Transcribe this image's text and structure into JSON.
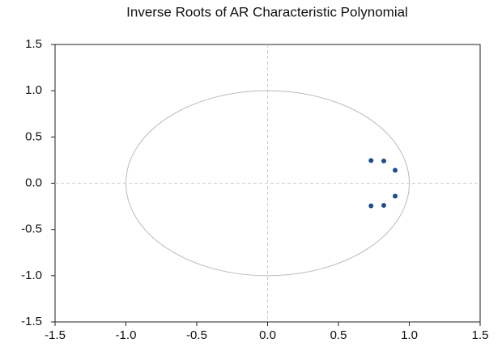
{
  "chart_data": {
    "type": "scatter",
    "title": "Inverse Roots of AR Characteristic Polynomial",
    "x": [
      0.73,
      0.82,
      0.9,
      0.9,
      0.82,
      0.73
    ],
    "values": [
      0.245,
      0.24,
      0.14,
      -0.14,
      -0.24,
      -0.245
    ],
    "color": "#1f4e8c",
    "xlim": [
      -1.5,
      1.5
    ],
    "ylim": [
      -1.5,
      1.5
    ],
    "xticks": [
      -1.5,
      {
        "value": -1,
        "label": "-1.0"
      },
      -0.5,
      {
        "value": 0,
        "label": "0.0"
      },
      0.5,
      {
        "value": 1,
        "label": "1.0"
      },
      1.5
    ],
    "yticks": [
      -1.5,
      {
        "value": -1,
        "label": "-1.0"
      },
      -0.5,
      {
        "value": 0,
        "label": "0.0"
      },
      0.5,
      {
        "value": 1,
        "label": "1.0"
      },
      1.5
    ]
  }
}
